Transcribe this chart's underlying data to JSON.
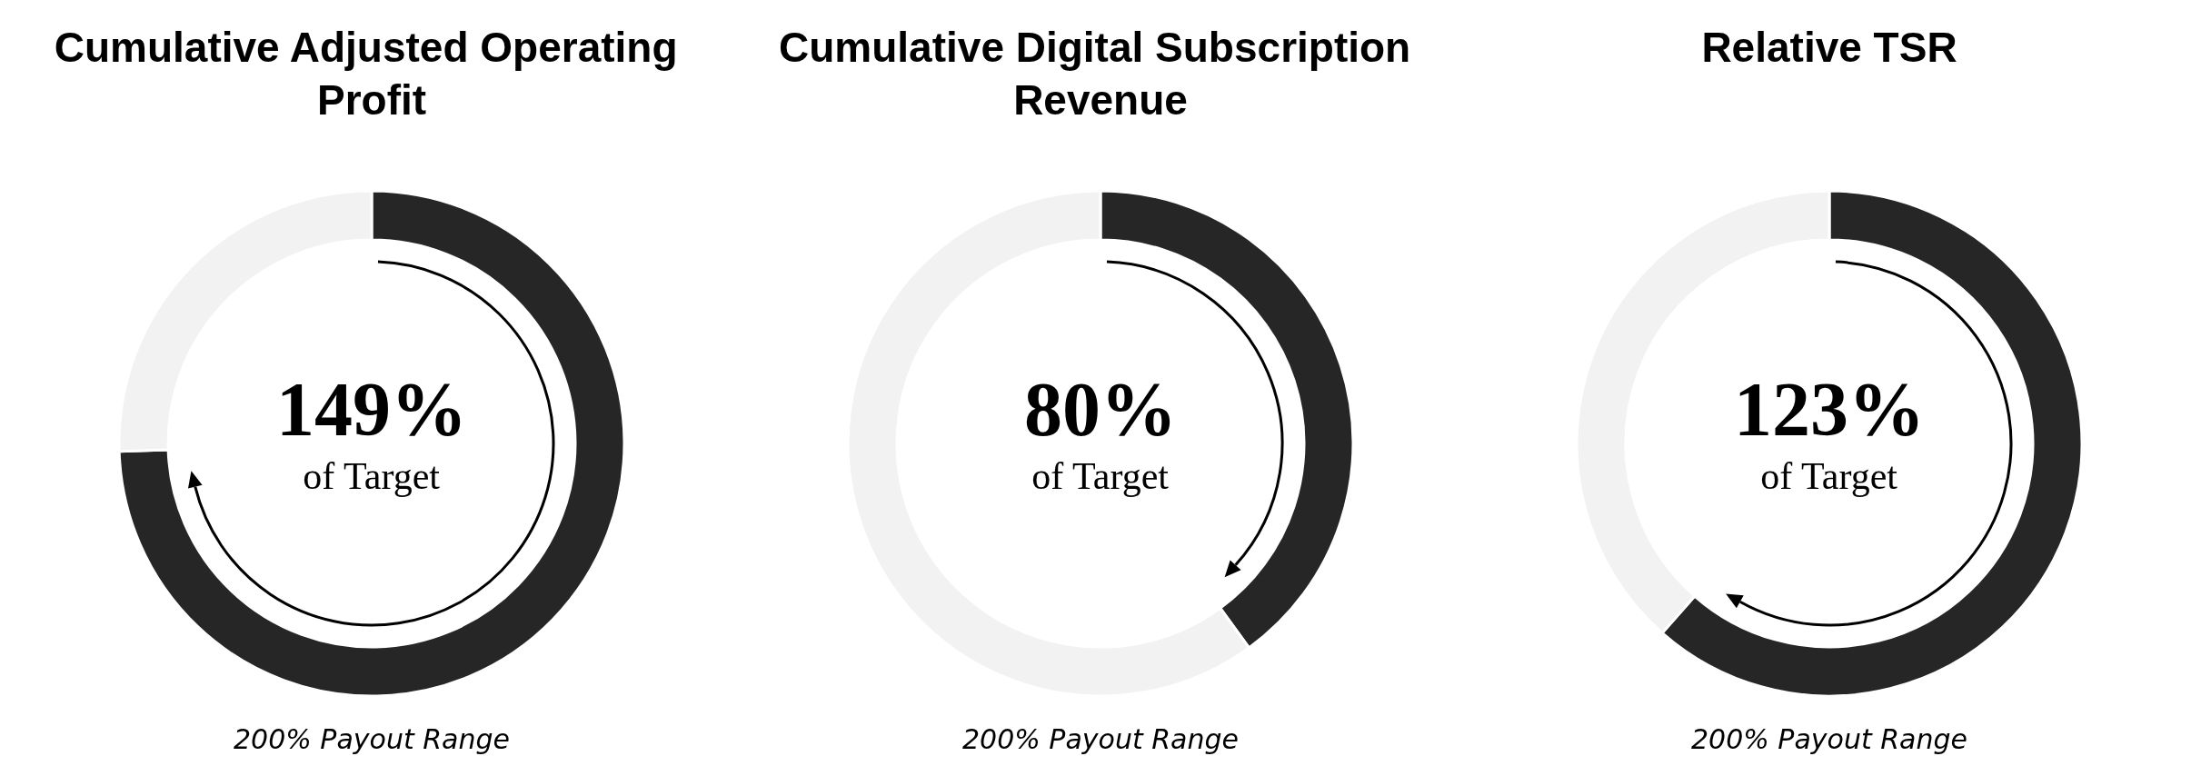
{
  "chart_data": [
    {
      "type": "donut",
      "title": "Cumulative Adjusted Operating Profit",
      "categories": [
        null,
        null
      ],
      "values": [
        74.5,
        25.5
      ],
      "colors": [
        "#262626",
        "#f2f2f2"
      ],
      "annotations": [
        "149%",
        "of Target",
        "200% Payout Range"
      ]
    },
    {
      "type": "donut",
      "title": "Cumulative Digital Subscription Revenue",
      "categories": [
        null,
        null
      ],
      "values": [
        40,
        60
      ],
      "colors": [
        "#262626",
        "#f2f2f2"
      ],
      "annotations": [
        "80%",
        "of Target",
        "200% Payout Range"
      ]
    },
    {
      "type": "donut",
      "title": "Relative TSR",
      "categories": [
        null,
        null
      ],
      "values": [
        61.5,
        38.5
      ],
      "colors": [
        "#262626",
        "#f2f2f2"
      ],
      "annotations": [
        "123%",
        "of Target",
        "200% Payout Range"
      ]
    }
  ]
}
